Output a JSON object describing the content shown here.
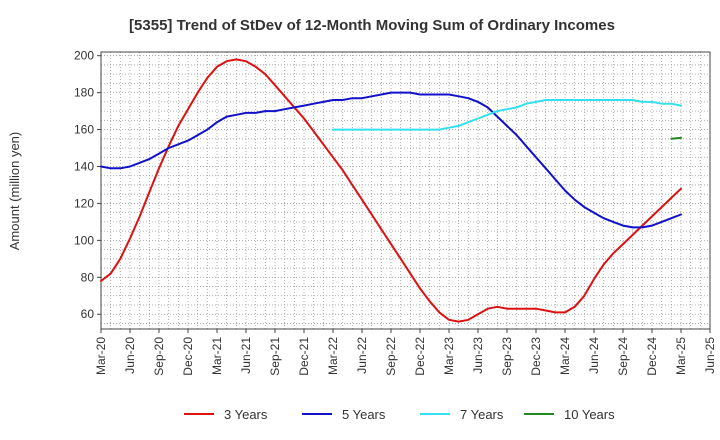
{
  "chart_data": {
    "type": "line",
    "title": "[5355]  Trend of StDev of 12-Month Moving Sum of Ordinary Incomes",
    "xlabel": "",
    "ylabel": "Amount (million yen)",
    "ylim": [
      52,
      202
    ],
    "yticks": [
      60,
      80,
      100,
      120,
      140,
      160,
      180,
      200
    ],
    "x_start": "Mar-20",
    "x_end": "Jun-25",
    "xticks": [
      "Mar-20",
      "Jun-20",
      "Sep-20",
      "Dec-20",
      "Mar-21",
      "Jun-21",
      "Sep-21",
      "Dec-21",
      "Mar-22",
      "Jun-22",
      "Sep-22",
      "Dec-22",
      "Mar-23",
      "Jun-23",
      "Sep-23",
      "Dec-23",
      "Mar-24",
      "Jun-24",
      "Sep-24",
      "Dec-24",
      "Mar-25",
      "Jun-25"
    ],
    "grid": true,
    "legend_position": "bottom",
    "series": [
      {
        "name": "3 Years",
        "color": "#dd1111",
        "x": [
          "Mar-20",
          "Apr-20",
          "May-20",
          "Jun-20",
          "Jul-20",
          "Aug-20",
          "Sep-20",
          "Oct-20",
          "Nov-20",
          "Dec-20",
          "Jan-21",
          "Feb-21",
          "Mar-21",
          "Apr-21",
          "May-21",
          "Jun-21",
          "Jul-21",
          "Aug-21",
          "Sep-21",
          "Oct-21",
          "Nov-21",
          "Dec-21",
          "Jan-22",
          "Feb-22",
          "Mar-22",
          "Apr-22",
          "May-22",
          "Jun-22",
          "Jul-22",
          "Aug-22",
          "Sep-22",
          "Oct-22",
          "Nov-22",
          "Dec-22",
          "Jan-23",
          "Feb-23",
          "Mar-23",
          "Apr-23",
          "May-23",
          "Jun-23",
          "Jul-23",
          "Aug-23",
          "Sep-23",
          "Oct-23",
          "Nov-23",
          "Dec-23",
          "Jan-24",
          "Feb-24",
          "Mar-24",
          "Apr-24",
          "May-24",
          "Jun-24",
          "Jul-24",
          "Aug-24",
          "Sep-24",
          "Oct-24",
          "Nov-24",
          "Dec-24",
          "Jan-25",
          "Feb-25",
          "Mar-25"
        ],
        "values": [
          78,
          82,
          90,
          101,
          113,
          126,
          139,
          151,
          162,
          171,
          180,
          188,
          194,
          197,
          198,
          197,
          194,
          190,
          184,
          178,
          172,
          166,
          159,
          152,
          145,
          138,
          130,
          122,
          114,
          106,
          98,
          90,
          82,
          74,
          67,
          61,
          57,
          56,
          57,
          60,
          63,
          64,
          63,
          63,
          63,
          63,
          62,
          61,
          61,
          64,
          70,
          79,
          87,
          93,
          98,
          103,
          108,
          113,
          118,
          123,
          128
        ]
      },
      {
        "name": "5 Years",
        "color": "#1111cc",
        "x": [
          "Mar-20",
          "Apr-20",
          "May-20",
          "Jun-20",
          "Jul-20",
          "Aug-20",
          "Sep-20",
          "Oct-20",
          "Nov-20",
          "Dec-20",
          "Jan-21",
          "Feb-21",
          "Mar-21",
          "Apr-21",
          "May-21",
          "Jun-21",
          "Jul-21",
          "Aug-21",
          "Sep-21",
          "Oct-21",
          "Nov-21",
          "Dec-21",
          "Jan-22",
          "Feb-22",
          "Mar-22",
          "Apr-22",
          "May-22",
          "Jun-22",
          "Jul-22",
          "Aug-22",
          "Sep-22",
          "Oct-22",
          "Nov-22",
          "Dec-22",
          "Jan-23",
          "Feb-23",
          "Mar-23",
          "Apr-23",
          "May-23",
          "Jun-23",
          "Jul-23",
          "Aug-23",
          "Sep-23",
          "Oct-23",
          "Nov-23",
          "Dec-23",
          "Jan-24",
          "Feb-24",
          "Mar-24",
          "Apr-24",
          "May-24",
          "Jun-24",
          "Jul-24",
          "Aug-24",
          "Sep-24",
          "Oct-24",
          "Nov-24",
          "Dec-24",
          "Jan-25",
          "Feb-25",
          "Mar-25"
        ],
        "values": [
          140,
          139,
          139,
          140,
          142,
          144,
          147,
          150,
          152,
          154,
          157,
          160,
          164,
          167,
          168,
          169,
          169,
          170,
          170,
          171,
          172,
          173,
          174,
          175,
          176,
          176,
          177,
          177,
          178,
          179,
          180,
          180,
          180,
          179,
          179,
          179,
          179,
          178,
          177,
          175,
          172,
          167,
          162,
          157,
          151,
          145,
          139,
          133,
          127,
          122,
          118,
          115,
          112,
          110,
          108,
          107,
          107,
          108,
          110,
          112,
          114
        ]
      },
      {
        "name": "7 Years",
        "color": "#33e0f0",
        "x": [
          "Mar-22",
          "Apr-22",
          "May-22",
          "Jun-22",
          "Jul-22",
          "Aug-22",
          "Sep-22",
          "Oct-22",
          "Nov-22",
          "Dec-22",
          "Jan-23",
          "Feb-23",
          "Mar-23",
          "Apr-23",
          "May-23",
          "Jun-23",
          "Jul-23",
          "Aug-23",
          "Sep-23",
          "Oct-23",
          "Nov-23",
          "Dec-23",
          "Jan-24",
          "Feb-24",
          "Mar-24",
          "Apr-24",
          "May-24",
          "Jun-24",
          "Jul-24",
          "Aug-24",
          "Sep-24",
          "Oct-24",
          "Nov-24",
          "Dec-24",
          "Jan-25",
          "Feb-25",
          "Mar-25"
        ],
        "values": [
          160,
          160,
          160,
          160,
          160,
          160,
          160,
          160,
          160,
          160,
          160,
          160,
          161,
          162,
          164,
          166,
          168,
          170,
          171,
          172,
          174,
          175,
          176,
          176,
          176,
          176,
          176,
          176,
          176,
          176,
          176,
          176,
          175,
          175,
          174,
          174,
          173
        ]
      },
      {
        "name": "10 Years",
        "color": "#228822",
        "x": [
          "Feb-25",
          "Mar-25"
        ],
        "values": [
          155,
          155.5
        ]
      }
    ]
  }
}
